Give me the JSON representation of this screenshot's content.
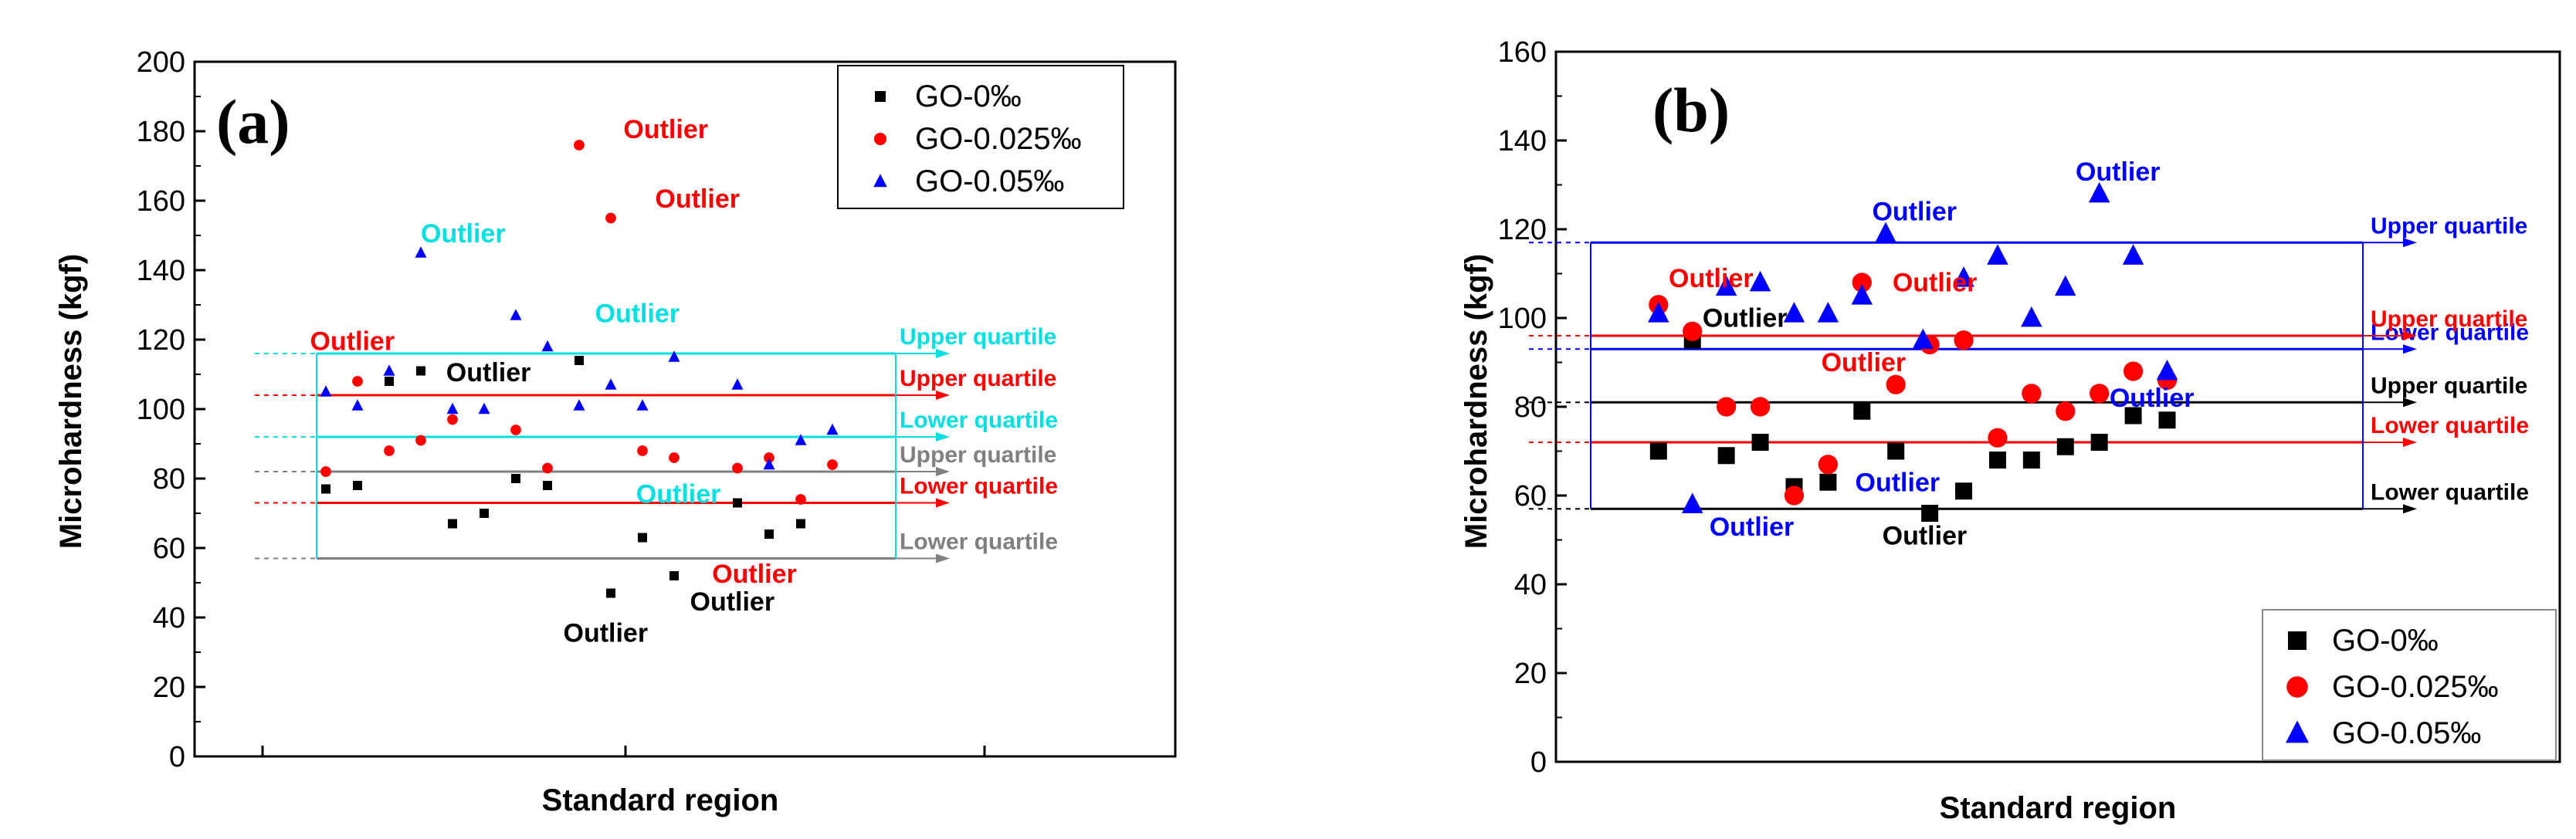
{
  "colors": {
    "black": "#000000",
    "red": "#ff0000",
    "blue": "#0000ff",
    "cyan": "#00e0e0",
    "gray": "#808080",
    "purple": "#b030b0",
    "green": "#00c000"
  },
  "chart_data": [
    {
      "type": "scatter",
      "panel_label": "(a)",
      "xlabel": "Standard region",
      "ylabel": "Microhardness (kgf)",
      "ylim": [
        0,
        200
      ],
      "yticks": [
        0,
        20,
        40,
        60,
        80,
        100,
        120,
        140,
        160,
        180,
        200
      ],
      "xlim": [
        0,
        20
      ],
      "legend": {
        "position": "top-right",
        "entries": [
          {
            "label": "GO-0‰",
            "marker": "square",
            "color": "#000000"
          },
          {
            "label": "GO-0.025‰",
            "marker": "circle",
            "color": "#ff0000"
          },
          {
            "label": "GO-0.05‰",
            "marker": "triangle",
            "color": "#0000ff"
          }
        ]
      },
      "series": [
        {
          "name": "GO-0‰",
          "marker": "square",
          "color": "#000000",
          "points": [
            [
              2,
              77
            ],
            [
              3,
              78
            ],
            [
              4,
              108
            ],
            [
              5,
              111
            ],
            [
              6,
              67
            ],
            [
              7,
              70
            ],
            [
              8,
              80
            ],
            [
              9,
              78
            ],
            [
              10,
              114
            ],
            [
              11,
              47
            ],
            [
              12,
              63
            ],
            [
              13,
              52
            ],
            [
              15,
              73
            ],
            [
              16,
              64
            ],
            [
              17,
              67
            ]
          ]
        },
        {
          "name": "GO-0.025‰",
          "marker": "circle",
          "color": "#ff0000",
          "points": [
            [
              2,
              82
            ],
            [
              3,
              108
            ],
            [
              4,
              88
            ],
            [
              5,
              91
            ],
            [
              6,
              97
            ],
            [
              8,
              94
            ],
            [
              9,
              83
            ],
            [
              10,
              176
            ],
            [
              11,
              155
            ],
            [
              12,
              88
            ],
            [
              13,
              86
            ],
            [
              15,
              83
            ],
            [
              16,
              86
            ],
            [
              17,
              74
            ],
            [
              18,
              84
            ]
          ]
        },
        {
          "name": "GO-0.05‰",
          "marker": "triangle",
          "color": "#0000ff",
          "points": [
            [
              2,
              105
            ],
            [
              3,
              101
            ],
            [
              4,
              111
            ],
            [
              5,
              145
            ],
            [
              6,
              100
            ],
            [
              7,
              100
            ],
            [
              8,
              127
            ],
            [
              9,
              118
            ],
            [
              10,
              101
            ],
            [
              11,
              107
            ],
            [
              12,
              101
            ],
            [
              13,
              115
            ],
            [
              15,
              107
            ],
            [
              16,
              84
            ],
            [
              17,
              91
            ],
            [
              18,
              94
            ]
          ]
        }
      ],
      "reference_lines": [
        {
          "label": "Upper quartile",
          "series": "GO-0.05‰",
          "value": 116,
          "color": "#00e0e0"
        },
        {
          "label": "Lower quartile",
          "series": "GO-0.05‰",
          "value": 92,
          "color": "#00e0e0"
        },
        {
          "label": "Upper quartile",
          "series": "GO-0.025‰",
          "value": 104,
          "color": "#ff0000"
        },
        {
          "label": "Lower quartile",
          "series": "GO-0.025‰",
          "value": 73,
          "color": "#ff0000"
        },
        {
          "label": "Upper quartile",
          "series": "GO-0‰",
          "value": 82,
          "color": "#808080"
        },
        {
          "label": "Lower quartile",
          "series": "GO-0‰",
          "value": 57,
          "color": "#808080"
        }
      ],
      "annotations": [
        {
          "text": "Outlier",
          "color": "#ff0000",
          "x": 11.4,
          "y": 178
        },
        {
          "text": "Outlier",
          "color": "#ff0000",
          "x": 12.4,
          "y": 158
        },
        {
          "text": "Outlier",
          "color": "#00e0e0",
          "x": 5,
          "y": 148
        },
        {
          "text": "Outlier",
          "color": "#00e0e0",
          "x": 10.5,
          "y": 125
        },
        {
          "text": "Outlier",
          "color": "#ff0000",
          "x": 1.5,
          "y": 117
        },
        {
          "text": "Outlier",
          "color": "#000000",
          "x": 5.8,
          "y": 108
        },
        {
          "text": "Outlier",
          "color": "#00e0e0",
          "x": 11.8,
          "y": 73
        },
        {
          "text": "Outlier",
          "color": "#ff0000",
          "x": 14.2,
          "y": 50
        },
        {
          "text": "Outlier",
          "color": "#000000",
          "x": 13.5,
          "y": 42
        },
        {
          "text": "Outlier",
          "color": "#000000",
          "x": 9.5,
          "y": 33
        }
      ]
    },
    {
      "type": "scatter",
      "panel_label": "(b)",
      "xlabel": "Standard region",
      "ylabel": "Microhardness (kgf)",
      "ylim": [
        0,
        160
      ],
      "yticks": [
        0,
        20,
        40,
        60,
        80,
        100,
        120,
        140,
        160
      ],
      "xlim": [
        0,
        23
      ],
      "legend": {
        "position": "bottom-right",
        "entries": [
          {
            "label": "GO-0‰",
            "marker": "square",
            "color": "#000000"
          },
          {
            "label": "GO-0.025‰",
            "marker": "circle",
            "color": "#ff0000"
          },
          {
            "label": "GO-0.05‰",
            "marker": "triangle",
            "color": "#0000ff"
          }
        ]
      },
      "series": [
        {
          "name": "GO-0‰",
          "marker": "square",
          "color": "#000000",
          "points": [
            [
              2,
              70
            ],
            [
              3,
              95
            ],
            [
              4,
              69
            ],
            [
              5,
              72
            ],
            [
              6,
              62
            ],
            [
              7,
              63
            ],
            [
              8,
              79
            ],
            [
              9,
              70
            ],
            [
              10,
              56
            ],
            [
              11,
              61
            ],
            [
              12,
              68
            ],
            [
              13,
              68
            ],
            [
              14,
              71
            ],
            [
              15,
              72
            ],
            [
              16,
              78
            ],
            [
              17,
              77
            ]
          ]
        },
        {
          "name": "GO-0.025‰",
          "marker": "circle",
          "color": "#ff0000",
          "points": [
            [
              2,
              103
            ],
            [
              3,
              97
            ],
            [
              4,
              80
            ],
            [
              5,
              80
            ],
            [
              6,
              60
            ],
            [
              7,
              67
            ],
            [
              8,
              108
            ],
            [
              9,
              85
            ],
            [
              10,
              94
            ],
            [
              11,
              95
            ],
            [
              12,
              73
            ],
            [
              13,
              83
            ],
            [
              14,
              79
            ],
            [
              15,
              83
            ],
            [
              16,
              88
            ],
            [
              17,
              86
            ]
          ]
        },
        {
          "name": "GO-0.05‰",
          "marker": "triangle",
          "color": "#0000ff",
          "points": [
            [
              2,
              101
            ],
            [
              3,
              58
            ],
            [
              4,
              107
            ],
            [
              5,
              108
            ],
            [
              6,
              101
            ],
            [
              7,
              101
            ],
            [
              8,
              105
            ],
            [
              8.7,
              119
            ],
            [
              9.8,
              95
            ],
            [
              11,
              109
            ],
            [
              12,
              114
            ],
            [
              13,
              100
            ],
            [
              14,
              107
            ],
            [
              15,
              128
            ],
            [
              16,
              114
            ],
            [
              17,
              88
            ]
          ]
        }
      ],
      "reference_lines": [
        {
          "label": "Upper quartile",
          "series": "GO-0.05‰",
          "value": 117,
          "color": "#0000ff"
        },
        {
          "label": "Lower quartile",
          "series": "GO-0.05‰",
          "value": 93,
          "color": "#0000ff"
        },
        {
          "label": "Upper quartile",
          "series": "GO-0.025‰",
          "value": 96,
          "color": "#ff0000"
        },
        {
          "label": "Lower quartile",
          "series": "GO-0.025‰",
          "value": 72,
          "color": "#ff0000"
        },
        {
          "label": "Upper quartile",
          "series": "GO-0‰",
          "value": 81,
          "color": "#000000"
        },
        {
          "label": "Lower quartile",
          "series": "GO-0‰",
          "value": 57,
          "color": "#000000"
        }
      ],
      "annotations": [
        {
          "text": "Outlier",
          "color": "#0000ff",
          "x": 14.3,
          "y": 131
        },
        {
          "text": "Outlier",
          "color": "#0000ff",
          "x": 8.3,
          "y": 122
        },
        {
          "text": "Outlier",
          "color": "#ff0000",
          "x": 2.3,
          "y": 107
        },
        {
          "text": "Outlier",
          "color": "#ff0000",
          "x": 8.9,
          "y": 106
        },
        {
          "text": "Outlier",
          "color": "#000000",
          "x": 3.3,
          "y": 98
        },
        {
          "text": "Outlier",
          "color": "#ff0000",
          "x": 6.8,
          "y": 88
        },
        {
          "text": "Outlier",
          "color": "#0000ff",
          "x": 15.3,
          "y": 80
        },
        {
          "text": "Outlier",
          "color": "#0000ff",
          "x": 7.8,
          "y": 61
        },
        {
          "text": "Outlier",
          "color": "#0000ff",
          "x": 3.5,
          "y": 51
        },
        {
          "text": "Outlier",
          "color": "#000000",
          "x": 8.6,
          "y": 49
        }
      ]
    }
  ]
}
